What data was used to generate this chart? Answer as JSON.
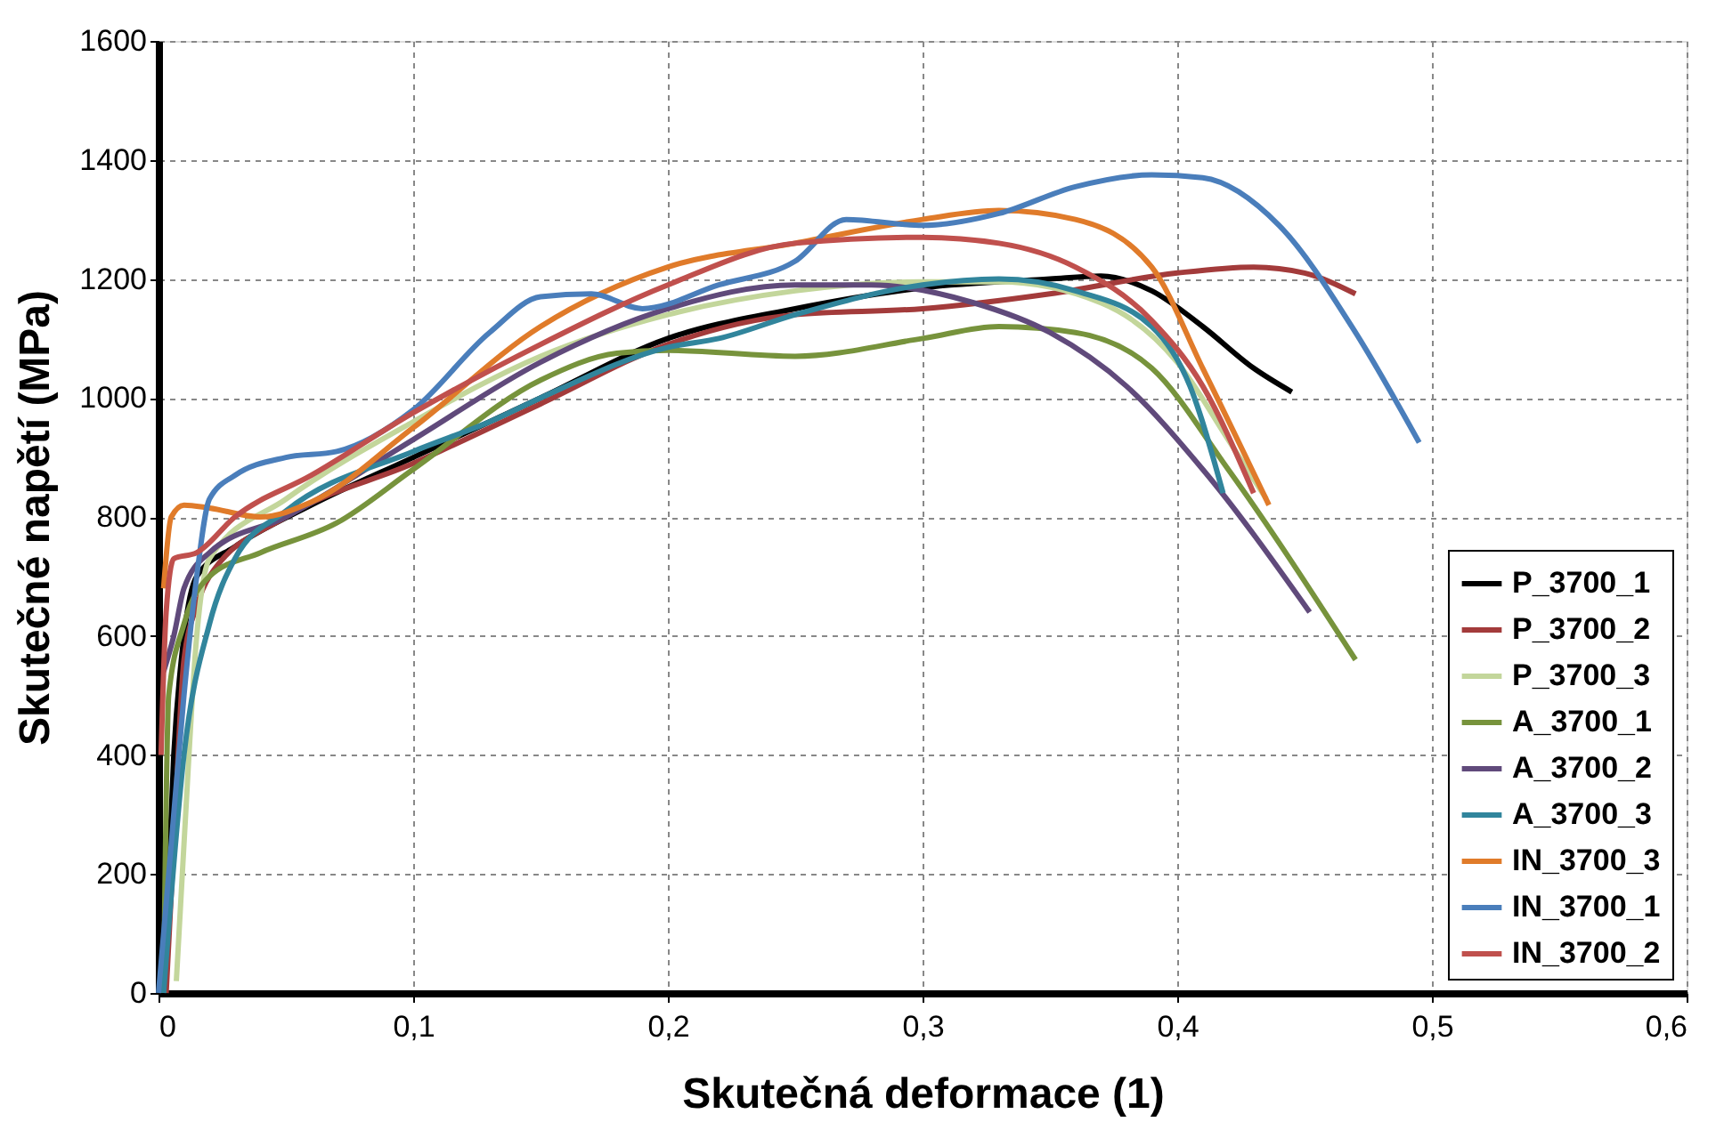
{
  "chart_data": {
    "type": "line",
    "xlabel": "Skutečná deformace (1)",
    "ylabel": "Skutečné napětí  (MPa)",
    "xlim": [
      0,
      0.6
    ],
    "xticks": [
      {
        "value": 0,
        "label": "0"
      },
      {
        "value": 0.1,
        "label": "0,1"
      },
      {
        "value": 0.2,
        "label": "0,2"
      },
      {
        "value": 0.3,
        "label": "0,3"
      },
      {
        "value": 0.4,
        "label": "0,4"
      },
      {
        "value": 0.5,
        "label": "0,5"
      },
      {
        "value": 0.6,
        "label": "0,6"
      }
    ],
    "ylim": [
      0,
      1600
    ],
    "yticks": [
      0,
      200,
      400,
      600,
      800,
      1000,
      1200,
      1400,
      1600
    ],
    "grid": true,
    "legend": "bottom right",
    "marker": "none",
    "line_style": "solid",
    "series": [
      {
        "name": "P_3700_1",
        "color": "#000000",
        "x": [
          0.003,
          0.006,
          0.01,
          0.015,
          0.03,
          0.06,
          0.1,
          0.15,
          0.2,
          0.25,
          0.3,
          0.35,
          0.37,
          0.39,
          0.41,
          0.43,
          0.445
        ],
        "values": [
          100,
          400,
          600,
          700,
          750,
          820,
          900,
          1000,
          1100,
          1150,
          1185,
          1200,
          1205,
          1180,
          1120,
          1050,
          1010
        ]
      },
      {
        "name": "P_3700_2",
        "color": "#a33b3b",
        "x": [
          0.003,
          0.006,
          0.01,
          0.015,
          0.02,
          0.05,
          0.1,
          0.15,
          0.2,
          0.25,
          0.3,
          0.35,
          0.4,
          0.43,
          0.45,
          0.47
        ],
        "values": [
          0,
          250,
          560,
          650,
          700,
          800,
          890,
          990,
          1090,
          1140,
          1150,
          1175,
          1210,
          1220,
          1210,
          1175
        ]
      },
      {
        "name": "P_3700_3",
        "color": "#c3d69b",
        "x": [
          0.007,
          0.01,
          0.015,
          0.02,
          0.05,
          0.1,
          0.15,
          0.2,
          0.25,
          0.3,
          0.33,
          0.37,
          0.4,
          0.42,
          0.435
        ],
        "values": [
          20,
          250,
          600,
          730,
          830,
          960,
          1070,
          1140,
          1180,
          1195,
          1195,
          1160,
          1060,
          930,
          830
        ]
      },
      {
        "name": "A_3700_1",
        "color": "#77933c",
        "x": [
          0.002,
          0.004,
          0.01,
          0.02,
          0.04,
          0.07,
          0.1,
          0.15,
          0.18,
          0.2,
          0.25,
          0.3,
          0.33,
          0.36,
          0.39,
          0.42,
          0.47
        ],
        "values": [
          0,
          500,
          620,
          700,
          740,
          790,
          880,
          1030,
          1075,
          1080,
          1070,
          1100,
          1120,
          1110,
          1050,
          880,
          560
        ]
      },
      {
        "name": "A_3700_2",
        "color": "#604a7b",
        "x": [
          0.002,
          0.006,
          0.01,
          0.02,
          0.05,
          0.1,
          0.15,
          0.2,
          0.25,
          0.28,
          0.32,
          0.35,
          0.38,
          0.41,
          0.452
        ],
        "values": [
          540,
          600,
          680,
          740,
          800,
          930,
          1060,
          1150,
          1190,
          1190,
          1160,
          1110,
          1020,
          880,
          640
        ]
      },
      {
        "name": "A_3700_3",
        "color": "#31859c",
        "x": [
          0.002,
          0.01,
          0.02,
          0.03,
          0.05,
          0.1,
          0.13,
          0.15,
          0.2,
          0.22,
          0.25,
          0.3,
          0.33,
          0.36,
          0.39,
          0.405,
          0.418
        ],
        "values": [
          0,
          400,
          620,
          730,
          810,
          910,
          960,
          1000,
          1085,
          1100,
          1140,
          1190,
          1200,
          1180,
          1120,
          1020,
          840
        ]
      },
      {
        "name": "IN_3700_3",
        "color": "#e07b2a",
        "x": [
          0.002,
          0.005,
          0.01,
          0.02,
          0.04,
          0.06,
          0.1,
          0.15,
          0.2,
          0.25,
          0.3,
          0.33,
          0.36,
          0.39,
          0.41,
          0.436
        ],
        "values": [
          680,
          800,
          820,
          815,
          800,
          825,
          950,
          1120,
          1220,
          1260,
          1300,
          1315,
          1300,
          1220,
          1050,
          820
        ]
      },
      {
        "name": "IN_3700_1",
        "color": "#4a7ebb",
        "x": [
          0.0,
          0.005,
          0.01,
          0.015,
          0.02,
          0.03,
          0.05,
          0.07,
          0.1,
          0.13,
          0.15,
          0.17,
          0.19,
          0.22,
          0.25,
          0.27,
          0.3,
          0.33,
          0.36,
          0.39,
          0.41,
          0.44,
          0.47,
          0.495
        ],
        "values": [
          0,
          250,
          500,
          700,
          830,
          870,
          900,
          910,
          980,
          1110,
          1170,
          1175,
          1150,
          1190,
          1230,
          1300,
          1290,
          1310,
          1355,
          1375,
          1370,
          1290,
          1110,
          925
        ]
      },
      {
        "name": "IN_3700_2",
        "color": "#c0504d",
        "x": [
          0.001,
          0.003,
          0.006,
          0.015,
          0.03,
          0.06,
          0.1,
          0.15,
          0.2,
          0.25,
          0.3,
          0.33,
          0.36,
          0.39,
          0.41,
          0.43
        ],
        "values": [
          400,
          640,
          730,
          740,
          800,
          870,
          975,
          1090,
          1190,
          1260,
          1270,
          1260,
          1220,
          1130,
          1020,
          840
        ]
      }
    ]
  }
}
